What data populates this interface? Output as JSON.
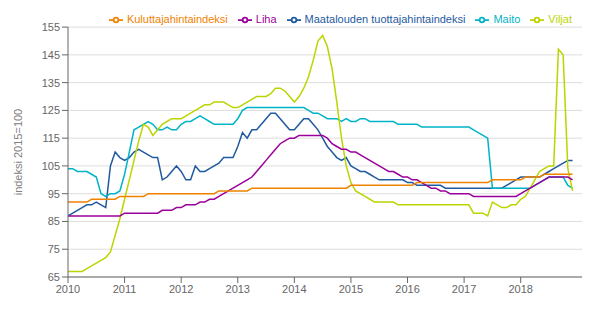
{
  "chart_data": {
    "type": "line",
    "title": "",
    "ylabel": "indeksi 2015=100",
    "ylim": [
      65,
      155
    ],
    "yticks": [
      65,
      75,
      85,
      95,
      105,
      115,
      125,
      135,
      145,
      155
    ],
    "xlim": [
      2010.0,
      2019.0833
    ],
    "xticks": [
      2010,
      2011,
      2012,
      2013,
      2014,
      2015,
      2016,
      2017,
      2018
    ],
    "grid": true,
    "legend": "upper right",
    "x": [
      2010,
      2010.0833,
      2010.1667,
      2010.25,
      2010.3333,
      2010.4167,
      2010.5,
      2010.5833,
      2010.6667,
      2010.75,
      2010.8333,
      2010.9167,
      2011,
      2011.0833,
      2011.1667,
      2011.25,
      2011.3333,
      2011.4167,
      2011.5,
      2011.5833,
      2011.6667,
      2011.75,
      2011.8333,
      2011.9167,
      2012,
      2012.0833,
      2012.1667,
      2012.25,
      2012.3333,
      2012.4167,
      2012.5,
      2012.5833,
      2012.6667,
      2012.75,
      2012.8333,
      2012.9167,
      2013,
      2013.0833,
      2013.1667,
      2013.25,
      2013.3333,
      2013.4167,
      2013.5,
      2013.5833,
      2013.6667,
      2013.75,
      2013.8333,
      2013.9167,
      2014,
      2014.0833,
      2014.1667,
      2014.25,
      2014.3333,
      2014.4167,
      2014.5,
      2014.5833,
      2014.6667,
      2014.75,
      2014.8333,
      2014.9167,
      2015,
      2015.0833,
      2015.1667,
      2015.25,
      2015.3333,
      2015.4167,
      2015.5,
      2015.5833,
      2015.6667,
      2015.75,
      2015.8333,
      2015.9167,
      2016,
      2016.0833,
      2016.1667,
      2016.25,
      2016.3333,
      2016.4167,
      2016.5,
      2016.5833,
      2016.6667,
      2016.75,
      2016.8333,
      2016.9167,
      2017,
      2017.0833,
      2017.1667,
      2017.25,
      2017.3333,
      2017.4167,
      2017.5,
      2017.5833,
      2017.6667,
      2017.75,
      2017.8333,
      2017.9167,
      2018,
      2018.0833,
      2018.1667,
      2018.25,
      2018.3333,
      2018.4167,
      2018.5,
      2018.5833,
      2018.6667,
      2018.75,
      2018.8333,
      2018.9167
    ],
    "series": [
      {
        "name": "Maatalouden tuottajahintaindeksi",
        "color": "#1f5aa0",
        "values": [
          87,
          88,
          89,
          90,
          91,
          91,
          92,
          91,
          90,
          105,
          110,
          108,
          107,
          108,
          110,
          111,
          110,
          109,
          108,
          108,
          100,
          101,
          103,
          105,
          103,
          100,
          100,
          105,
          103,
          103,
          104,
          105,
          106,
          108,
          108,
          108,
          112,
          117,
          115,
          118,
          118,
          120,
          122,
          124,
          124,
          122,
          120,
          118,
          118,
          120,
          122,
          122,
          120,
          118,
          115,
          112,
          110,
          108,
          107,
          108,
          105,
          104,
          103,
          103,
          102,
          101,
          100,
          100,
          100,
          100,
          100,
          100,
          99,
          99,
          98,
          98,
          98,
          98,
          98,
          98,
          97,
          97,
          97,
          97,
          97,
          97,
          97,
          97,
          97,
          97,
          97,
          97,
          97,
          98,
          99,
          100,
          101,
          101,
          101,
          101,
          101,
          102,
          103,
          104,
          105,
          106,
          107,
          107
        ]
      },
      {
        "name": "Maito",
        "color": "#00b4c8",
        "values": [
          104,
          104,
          103,
          103,
          103,
          102,
          101,
          95,
          94,
          95,
          95,
          96,
          102,
          110,
          118,
          119,
          120,
          121,
          120,
          118,
          118,
          119,
          118,
          118,
          120,
          121,
          121,
          122,
          123,
          122,
          121,
          120,
          120,
          120,
          120,
          120,
          122,
          125,
          126,
          126,
          126,
          126,
          126,
          126,
          126,
          126,
          126,
          126,
          126,
          126,
          126,
          125,
          124,
          124,
          123,
          122,
          122,
          122,
          121,
          122,
          121,
          121,
          122,
          122,
          121,
          121,
          121,
          121,
          121,
          121,
          120,
          120,
          120,
          120,
          120,
          119,
          119,
          119,
          119,
          119,
          119,
          119,
          119,
          119,
          119,
          119,
          118,
          117,
          116,
          115,
          97,
          97,
          97,
          97,
          97,
          97,
          97,
          97,
          97,
          98,
          99,
          100,
          101,
          101,
          101,
          101,
          98,
          97
        ]
      },
      {
        "name": "Viljat",
        "color": "#bcd400",
        "values": [
          67,
          67,
          67,
          67,
          68,
          69,
          70,
          71,
          72,
          74,
          80,
          86,
          93,
          100,
          107,
          114,
          120,
          119,
          116,
          118,
          120,
          121,
          122,
          122,
          122,
          123,
          124,
          125,
          126,
          127,
          127,
          128,
          128,
          128,
          127,
          126,
          126,
          127,
          128,
          129,
          130,
          130,
          130,
          131,
          133,
          133,
          132,
          130,
          128,
          130,
          133,
          137,
          143,
          150,
          152,
          148,
          140,
          128,
          115,
          105,
          99,
          96,
          95,
          94,
          93,
          92,
          92,
          92,
          92,
          92,
          91,
          91,
          91,
          91,
          91,
          91,
          91,
          91,
          91,
          91,
          91,
          91,
          91,
          91,
          91,
          91,
          88,
          88,
          88,
          87,
          92,
          91,
          90,
          90,
          91,
          91,
          93,
          94,
          97,
          100,
          103,
          104,
          105,
          105,
          147,
          145,
          104,
          96
        ]
      },
      {
        "name": "Liha",
        "color": "#9b009b",
        "values": [
          87,
          87,
          87,
          87,
          87,
          87,
          87,
          87,
          87,
          87,
          87,
          87,
          88,
          88,
          88,
          88,
          88,
          88,
          88,
          88,
          89,
          89,
          89,
          90,
          90,
          91,
          91,
          91,
          92,
          92,
          93,
          93,
          94,
          95,
          96,
          97,
          98,
          99,
          100,
          101,
          103,
          105,
          107,
          109,
          111,
          113,
          114,
          115,
          115,
          116,
          116,
          116,
          116,
          116,
          116,
          115,
          113,
          112,
          111,
          111,
          110,
          110,
          109,
          108,
          107,
          106,
          105,
          104,
          103,
          103,
          102,
          101,
          101,
          100,
          100,
          99,
          98,
          97,
          97,
          96,
          96,
          95,
          95,
          95,
          95,
          95,
          94,
          94,
          94,
          94,
          94,
          94,
          94,
          94,
          94,
          94,
          95,
          96,
          97,
          98,
          99,
          100,
          101,
          101,
          101,
          101,
          101,
          100
        ]
      },
      {
        "name": "Kuluttajahintaindeksi",
        "color": "#f08200",
        "values": [
          92,
          92,
          92,
          92,
          92,
          93,
          93,
          93,
          93,
          93,
          93,
          94,
          94,
          94,
          94,
          94,
          94,
          95,
          95,
          95,
          95,
          95,
          95,
          95,
          95,
          95,
          95,
          95,
          95,
          95,
          95,
          95,
          96,
          96,
          96,
          96,
          96,
          96,
          96,
          97,
          97,
          97,
          97,
          97,
          97,
          97,
          97,
          97,
          97,
          97,
          97,
          97,
          97,
          97,
          97,
          97,
          97,
          97,
          97,
          97,
          98,
          98,
          98,
          98,
          98,
          98,
          98,
          98,
          98,
          98,
          98,
          98,
          98,
          98,
          99,
          99,
          99,
          99,
          99,
          99,
          99,
          99,
          99,
          99,
          99,
          99,
          99,
          99,
          99,
          99,
          100,
          100,
          100,
          100,
          100,
          100,
          100,
          101,
          101,
          101,
          101,
          102,
          102,
          102,
          102,
          102,
          102,
          102
        ]
      }
    ]
  }
}
